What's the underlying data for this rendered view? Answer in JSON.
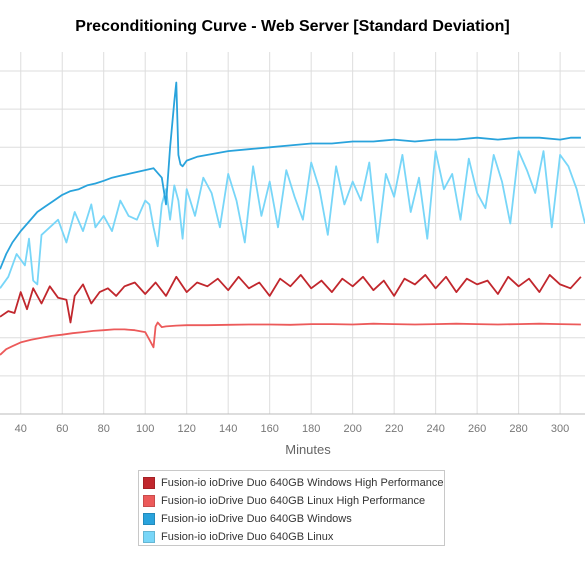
{
  "chart_data": {
    "type": "line",
    "title": "Preconditioning Curve - Web Server [Standard Deviation]",
    "xlabel": "Minutes",
    "ylabel": "",
    "xlim": [
      30,
      312
    ],
    "ylim": [
      0,
      9.5
    ],
    "x_ticks": [
      40,
      60,
      80,
      100,
      120,
      140,
      160,
      180,
      200,
      220,
      240,
      260,
      280,
      300
    ],
    "grid": "vertical and horizontal",
    "legend_position": "bottom",
    "series": [
      {
        "name": "Fusion-io ioDrive Duo 640GB Windows High Performance",
        "color": "#c1272d",
        "x": [
          30,
          34,
          37,
          40,
          43,
          46,
          50,
          54,
          58,
          62,
          64,
          66,
          70,
          74,
          78,
          82,
          86,
          90,
          95,
          100,
          105,
          110,
          115,
          120,
          125,
          130,
          135,
          140,
          145,
          150,
          155,
          160,
          165,
          170,
          175,
          180,
          185,
          190,
          195,
          200,
          205,
          210,
          215,
          220,
          225,
          230,
          235,
          240,
          245,
          250,
          255,
          260,
          265,
          270,
          275,
          280,
          285,
          290,
          295,
          300,
          305,
          310
        ],
        "values": [
          2.55,
          2.7,
          2.65,
          3.2,
          2.75,
          3.3,
          2.9,
          3.35,
          3.05,
          3.0,
          2.4,
          3.1,
          3.4,
          2.9,
          3.2,
          3.3,
          3.1,
          3.35,
          3.45,
          3.15,
          3.45,
          3.1,
          3.6,
          3.2,
          3.45,
          3.35,
          3.55,
          3.25,
          3.6,
          3.3,
          3.45,
          3.1,
          3.55,
          3.35,
          3.65,
          3.3,
          3.5,
          3.2,
          3.55,
          3.35,
          3.6,
          3.25,
          3.5,
          3.1,
          3.55,
          3.4,
          3.65,
          3.3,
          3.6,
          3.2,
          3.55,
          3.4,
          3.5,
          3.15,
          3.6,
          3.35,
          3.55,
          3.2,
          3.65,
          3.4,
          3.3,
          3.6
        ]
      },
      {
        "name": "Fusion-io ioDrive Duo 640GB Linux High Performance",
        "color": "#ec5a5a",
        "x": [
          30,
          33,
          36,
          40,
          45,
          50,
          55,
          60,
          65,
          70,
          75,
          80,
          85,
          90,
          95,
          100,
          102,
          104,
          105,
          106,
          108,
          110,
          115,
          120,
          130,
          140,
          150,
          160,
          170,
          180,
          190,
          200,
          210,
          220,
          230,
          240,
          250,
          260,
          270,
          280,
          290,
          300,
          310
        ],
        "values": [
          1.55,
          1.7,
          1.78,
          1.88,
          1.95,
          2.0,
          2.05,
          2.08,
          2.12,
          2.15,
          2.18,
          2.2,
          2.22,
          2.22,
          2.2,
          2.15,
          1.95,
          1.75,
          2.3,
          2.4,
          2.28,
          2.3,
          2.32,
          2.33,
          2.33,
          2.34,
          2.35,
          2.35,
          2.34,
          2.36,
          2.36,
          2.35,
          2.37,
          2.36,
          2.35,
          2.36,
          2.37,
          2.36,
          2.35,
          2.36,
          2.37,
          2.36,
          2.35
        ]
      },
      {
        "name": "Fusion-io ioDrive Duo 640GB Windows",
        "color": "#29a3dc",
        "x": [
          30,
          33,
          36,
          40,
          44,
          48,
          52,
          56,
          60,
          64,
          68,
          72,
          76,
          80,
          84,
          88,
          92,
          96,
          100,
          104,
          108,
          110,
          112,
          114,
          115,
          116,
          117,
          118,
          120,
          125,
          130,
          140,
          150,
          160,
          170,
          180,
          190,
          200,
          210,
          220,
          230,
          240,
          250,
          260,
          270,
          280,
          290,
          300,
          305,
          310
        ],
        "values": [
          3.8,
          4.2,
          4.5,
          4.8,
          5.05,
          5.3,
          5.45,
          5.6,
          5.75,
          5.85,
          5.9,
          6.0,
          6.05,
          6.12,
          6.2,
          6.25,
          6.3,
          6.35,
          6.4,
          6.45,
          6.2,
          5.5,
          7.0,
          8.2,
          8.7,
          6.8,
          6.55,
          6.5,
          6.65,
          6.75,
          6.8,
          6.9,
          6.95,
          7.0,
          7.05,
          7.1,
          7.1,
          7.15,
          7.15,
          7.2,
          7.15,
          7.2,
          7.2,
          7.25,
          7.2,
          7.25,
          7.25,
          7.2,
          7.25,
          7.25
        ]
      },
      {
        "name": "Fusion-io ioDrive Duo 640GB Linux",
        "color": "#78d6f8",
        "x": [
          30,
          34,
          38,
          42,
          44,
          46,
          48,
          50,
          54,
          58,
          62,
          66,
          70,
          74,
          76,
          80,
          84,
          88,
          92,
          96,
          100,
          102,
          104,
          106,
          108,
          110,
          112,
          114,
          116,
          118,
          120,
          124,
          128,
          132,
          136,
          140,
          144,
          148,
          152,
          156,
          160,
          164,
          168,
          172,
          176,
          180,
          184,
          188,
          192,
          196,
          200,
          204,
          208,
          212,
          216,
          220,
          224,
          228,
          232,
          236,
          240,
          244,
          248,
          252,
          256,
          260,
          264,
          268,
          272,
          276,
          280,
          284,
          288,
          292,
          296,
          300,
          304,
          308,
          312
        ],
        "values": [
          3.3,
          3.6,
          4.2,
          3.9,
          4.6,
          3.5,
          3.4,
          4.7,
          4.9,
          5.1,
          4.5,
          5.3,
          4.8,
          5.5,
          4.9,
          5.2,
          4.8,
          5.6,
          5.2,
          5.1,
          5.6,
          5.5,
          4.9,
          4.4,
          5.5,
          5.9,
          5.1,
          6.0,
          5.6,
          4.6,
          5.9,
          5.2,
          6.2,
          5.8,
          4.9,
          6.3,
          5.6,
          4.5,
          6.5,
          5.2,
          6.1,
          4.9,
          6.4,
          5.7,
          5.1,
          6.6,
          5.9,
          4.7,
          6.5,
          5.5,
          6.1,
          5.6,
          6.6,
          4.5,
          6.3,
          5.7,
          6.8,
          5.3,
          6.2,
          4.6,
          6.9,
          5.9,
          6.3,
          5.1,
          6.7,
          5.8,
          5.4,
          6.8,
          6.1,
          5.0,
          6.9,
          6.4,
          5.8,
          6.9,
          4.9,
          6.8,
          6.5,
          5.9,
          5.0
        ]
      }
    ]
  }
}
